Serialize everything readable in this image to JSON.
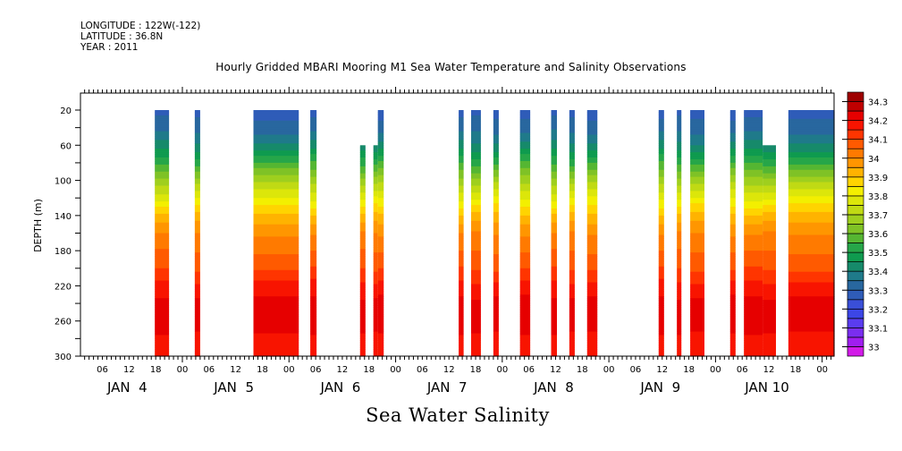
{
  "header": {
    "longitude": "LONGITUDE : 122W(-122)",
    "latitude": "LATITUDE : 36.8N",
    "year": "YEAR : 2011"
  },
  "chart_data": {
    "type": "heatmap",
    "title": "Hourly Gridded MBARI Mooring M1 Sea Water Temperature and Salinity Observations",
    "bottom_label": "Sea Water Salinity",
    "xlabel": "",
    "ylabel": "DEPTH (m)",
    "x_unit": "hours since JAN 4 2011 00:00",
    "xlim": [
      1,
      171
    ],
    "ylim": [
      300,
      0
    ],
    "y_ticks": [
      20,
      60,
      100,
      140,
      180,
      220,
      260,
      300
    ],
    "x_hour_ticks": [
      {
        "hour": 6,
        "label": "06"
      },
      {
        "hour": 12,
        "label": "12"
      },
      {
        "hour": 18,
        "label": "18"
      },
      {
        "hour": 24,
        "label": "00"
      },
      {
        "hour": 30,
        "label": "06"
      },
      {
        "hour": 36,
        "label": "12"
      },
      {
        "hour": 42,
        "label": "18"
      },
      {
        "hour": 48,
        "label": "00"
      },
      {
        "hour": 54,
        "label": "06"
      },
      {
        "hour": 60,
        "label": "12"
      },
      {
        "hour": 66,
        "label": "18"
      },
      {
        "hour": 72,
        "label": "00"
      },
      {
        "hour": 78,
        "label": "06"
      },
      {
        "hour": 84,
        "label": "12"
      },
      {
        "hour": 90,
        "label": "18"
      },
      {
        "hour": 96,
        "label": "00"
      },
      {
        "hour": 102,
        "label": "06"
      },
      {
        "hour": 108,
        "label": "12"
      },
      {
        "hour": 114,
        "label": "18"
      },
      {
        "hour": 120,
        "label": "00"
      },
      {
        "hour": 126,
        "label": "06"
      },
      {
        "hour": 132,
        "label": "12"
      },
      {
        "hour": 138,
        "label": "18"
      },
      {
        "hour": 144,
        "label": "00"
      },
      {
        "hour": 150,
        "label": "06"
      },
      {
        "hour": 156,
        "label": "12"
      },
      {
        "hour": 162,
        "label": "18"
      },
      {
        "hour": 168,
        "label": "00"
      }
    ],
    "day_labels": [
      {
        "hour": 12,
        "label": "JAN  4"
      },
      {
        "hour": 36,
        "label": "JAN  5"
      },
      {
        "hour": 60,
        "label": "JAN  6"
      },
      {
        "hour": 84,
        "label": "JAN  7"
      },
      {
        "hour": 108,
        "label": "JAN  8"
      },
      {
        "hour": 132,
        "label": "JAN  9"
      },
      {
        "hour": 156,
        "label": "JAN 10"
      }
    ],
    "colorbar": {
      "levels": [
        33.0,
        33.05,
        33.1,
        33.15,
        33.2,
        33.25,
        33.3,
        33.35,
        33.4,
        33.45,
        33.5,
        33.55,
        33.6,
        33.65,
        33.7,
        33.75,
        33.8,
        33.85,
        33.9,
        33.95,
        34.0,
        34.05,
        34.1,
        34.15,
        34.2,
        34.25,
        34.3
      ],
      "labels": [
        "33",
        "33.1",
        "33.2",
        "33.3",
        "33.4",
        "33.5",
        "33.6",
        "33.7",
        "33.8",
        "33.9",
        "34",
        "34.1",
        "34.2",
        "34.3"
      ],
      "colors": [
        "#d21be8",
        "#a01ef0",
        "#7a2ef0",
        "#5a3cf0",
        "#3c46e6",
        "#3a4fd8",
        "#2f5cb8",
        "#28679f",
        "#1f7a8a",
        "#168a6a",
        "#0f9b4f",
        "#26a649",
        "#55b632",
        "#7fc226",
        "#9fcf1e",
        "#c0da14",
        "#dce60a",
        "#f3ef00",
        "#ffd400",
        "#ffb300",
        "#ff9600",
        "#ff7a00",
        "#ff5a00",
        "#ff3500",
        "#f81400",
        "#e60000",
        "#c00000",
        "#9e0000"
      ]
    },
    "profile": {
      "depth": [
        20,
        40,
        60,
        80,
        100,
        120,
        140,
        160,
        180,
        200,
        220,
        240,
        260,
        280,
        300
      ],
      "salinity": [
        33.28,
        33.33,
        33.42,
        33.55,
        33.68,
        33.8,
        33.92,
        34.0,
        34.05,
        34.1,
        34.17,
        34.22,
        34.24,
        34.18,
        34.16
      ]
    },
    "observation_blocks": [
      {
        "start_hour": 17.8,
        "end_hour": 21.0,
        "top_depth": 20
      },
      {
        "start_hour": 26.8,
        "end_hour": 28.0,
        "top_depth": 20
      },
      {
        "start_hour": 40.0,
        "end_hour": 50.2,
        "top_depth": 20
      },
      {
        "start_hour": 52.8,
        "end_hour": 54.2,
        "top_depth": 20
      },
      {
        "start_hour": 64.0,
        "end_hour": 65.2,
        "top_depth": 60
      },
      {
        "start_hour": 67.0,
        "end_hour": 68.0,
        "top_depth": 60
      },
      {
        "start_hour": 68.0,
        "end_hour": 69.3,
        "top_depth": 20
      },
      {
        "start_hour": 86.2,
        "end_hour": 87.3,
        "top_depth": 20
      },
      {
        "start_hour": 89.0,
        "end_hour": 91.2,
        "top_depth": 20
      },
      {
        "start_hour": 94.0,
        "end_hour": 95.2,
        "top_depth": 20
      },
      {
        "start_hour": 100.0,
        "end_hour": 102.3,
        "top_depth": 20
      },
      {
        "start_hour": 107.0,
        "end_hour": 108.3,
        "top_depth": 20
      },
      {
        "start_hour": 111.1,
        "end_hour": 112.3,
        "top_depth": 20
      },
      {
        "start_hour": 115.1,
        "end_hour": 117.4,
        "top_depth": 20
      },
      {
        "start_hour": 131.2,
        "end_hour": 132.4,
        "top_depth": 20
      },
      {
        "start_hour": 135.3,
        "end_hour": 136.3,
        "top_depth": 20
      },
      {
        "start_hour": 138.3,
        "end_hour": 141.5,
        "top_depth": 20
      },
      {
        "start_hour": 147.3,
        "end_hour": 148.5,
        "top_depth": 20
      },
      {
        "start_hour": 150.4,
        "end_hour": 154.6,
        "top_depth": 20
      },
      {
        "start_hour": 154.6,
        "end_hour": 157.6,
        "top_depth": 60
      },
      {
        "start_hour": 160.4,
        "end_hour": 170.8,
        "top_depth": 20
      }
    ]
  }
}
